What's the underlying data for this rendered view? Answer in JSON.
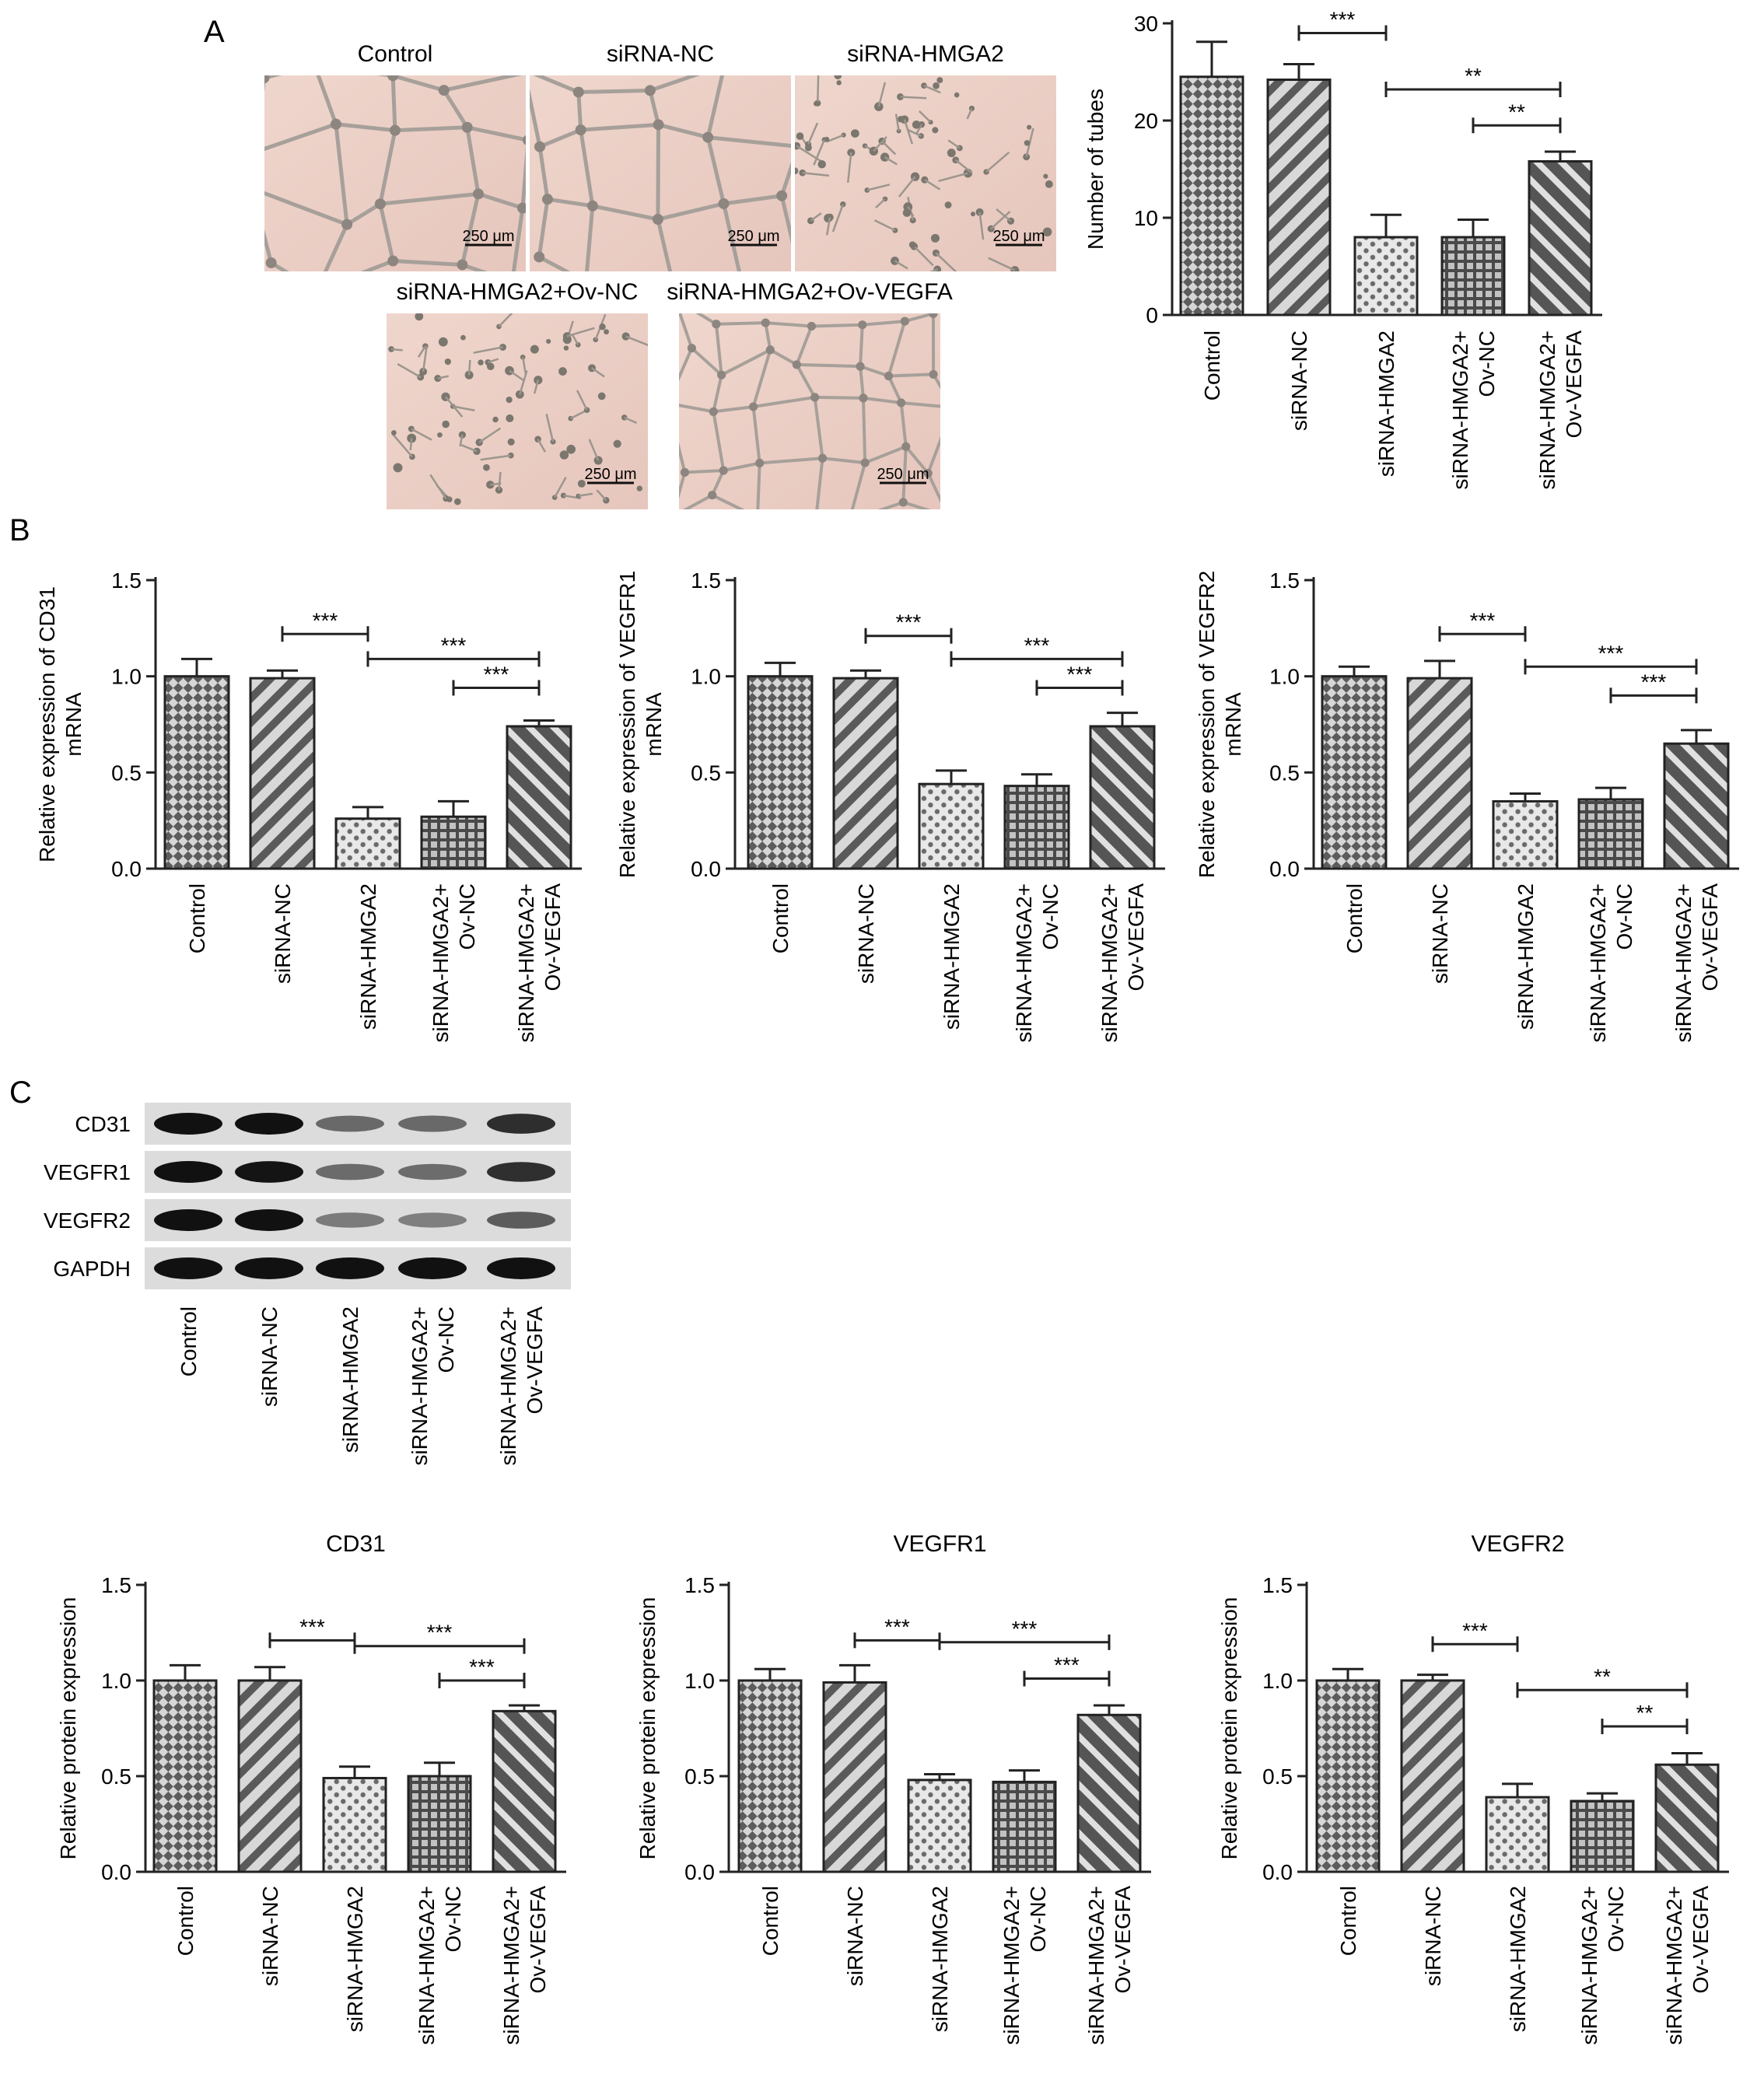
{
  "panels": {
    "a": {
      "letter": "A"
    },
    "b": {
      "letter": "B"
    },
    "c": {
      "letter": "C"
    }
  },
  "micrographs": {
    "scale_bar": "250 μm",
    "items": [
      {
        "id": "control",
        "label": "Control",
        "network": 1.0
      },
      {
        "id": "sinc",
        "label": "siRNA-NC",
        "network": 1.0
      },
      {
        "id": "sihmga2",
        "label": "siRNA-HMGA2",
        "network": 0.0
      },
      {
        "id": "ovnc",
        "label": "siRNA-HMGA2+Ov-NC",
        "network": 0.0
      },
      {
        "id": "ovvegfa",
        "label": "siRNA-HMGA2+Ov-VEGFA",
        "network": 0.6
      }
    ]
  },
  "western_blot": {
    "rows": [
      {
        "label": "CD31",
        "intensity": [
          1.0,
          1.0,
          0.49,
          0.5,
          0.84
        ]
      },
      {
        "label": "VEGFR1",
        "intensity": [
          1.0,
          0.99,
          0.48,
          0.47,
          0.82
        ]
      },
      {
        "label": "VEGFR2",
        "intensity": [
          1.0,
          1.0,
          0.39,
          0.37,
          0.56
        ]
      },
      {
        "label": "GAPDH",
        "intensity": [
          1.0,
          1.0,
          1.0,
          1.0,
          1.0
        ]
      }
    ],
    "lane_labels": [
      [
        "Control"
      ],
      [
        "siRNA-NC"
      ],
      [
        "siRNA-HMGA2"
      ],
      [
        "siRNA-HMGA2+",
        "Ov-NC"
      ],
      [
        "siRNA-HMGA2+",
        "Ov-VEGFA"
      ]
    ]
  },
  "chart_data": [
    {
      "id": "tubes",
      "panel": "A",
      "type": "bar",
      "title": "",
      "ylabel": [
        "Number of tubes"
      ],
      "ylim": [
        0,
        30
      ],
      "yticks": [
        "0",
        "10",
        "20",
        "30"
      ],
      "ytick_values": [
        0,
        10,
        20,
        30
      ],
      "categories": [
        [
          "Control"
        ],
        [
          "siRNA-NC"
        ],
        [
          "siRNA-HMGA2"
        ],
        [
          "siRNA-HMGA2+",
          "Ov-NC"
        ],
        [
          "siRNA-HMGA2+",
          "Ov-VEGFA"
        ]
      ],
      "values": [
        24.5,
        24.2,
        8.0,
        8.0,
        15.8
      ],
      "errors": [
        3.6,
        1.6,
        2.3,
        1.8,
        1.0
      ],
      "significance": [
        {
          "from": 1,
          "to": 2,
          "label": "***",
          "y": 29.0
        },
        {
          "from": 2,
          "to": 4,
          "label": "**",
          "y": 23.2
        },
        {
          "from": 3,
          "to": 4,
          "label": "**",
          "y": 19.5
        }
      ]
    },
    {
      "id": "cd31_mrna",
      "panel": "B",
      "type": "bar",
      "title": "",
      "ylabel": [
        "Relative expression of CD31",
        "mRNA"
      ],
      "ylim": [
        0,
        1.5
      ],
      "yticks": [
        "0.0",
        "0.5",
        "1.0",
        "1.5"
      ],
      "ytick_values": [
        0,
        0.5,
        1.0,
        1.5
      ],
      "categories": [
        [
          "Control"
        ],
        [
          "siRNA-NC"
        ],
        [
          "siRNA-HMGA2"
        ],
        [
          "siRNA-HMGA2+",
          "Ov-NC"
        ],
        [
          "siRNA-HMGA2+",
          "Ov-VEGFA"
        ]
      ],
      "values": [
        1.0,
        0.99,
        0.26,
        0.27,
        0.74
      ],
      "errors": [
        0.09,
        0.04,
        0.06,
        0.08,
        0.03
      ],
      "significance": [
        {
          "from": 1,
          "to": 2,
          "label": "***",
          "y": 1.22
        },
        {
          "from": 2,
          "to": 4,
          "label": "***",
          "y": 1.09
        },
        {
          "from": 3,
          "to": 4,
          "label": "***",
          "y": 0.94
        }
      ]
    },
    {
      "id": "vegfr1_mrna",
      "panel": "B",
      "type": "bar",
      "title": "",
      "ylabel": [
        "Relative expression of VEGFR1",
        "mRNA"
      ],
      "ylim": [
        0,
        1.5
      ],
      "yticks": [
        "0.0",
        "0.5",
        "1.0",
        "1.5"
      ],
      "ytick_values": [
        0,
        0.5,
        1.0,
        1.5
      ],
      "categories": [
        [
          "Control"
        ],
        [
          "siRNA-NC"
        ],
        [
          "siRNA-HMGA2"
        ],
        [
          "siRNA-HMGA2+",
          "Ov-NC"
        ],
        [
          "siRNA-HMGA2+",
          "Ov-VEGFA"
        ]
      ],
      "values": [
        1.0,
        0.99,
        0.44,
        0.43,
        0.74
      ],
      "errors": [
        0.07,
        0.04,
        0.07,
        0.06,
        0.07
      ],
      "significance": [
        {
          "from": 1,
          "to": 2,
          "label": "***",
          "y": 1.21
        },
        {
          "from": 2,
          "to": 4,
          "label": "***",
          "y": 1.09
        },
        {
          "from": 3,
          "to": 4,
          "label": "***",
          "y": 0.94
        }
      ]
    },
    {
      "id": "vegfr2_mrna",
      "panel": "B",
      "type": "bar",
      "title": "",
      "ylabel": [
        "Relative expression of VEGFR2",
        "mRNA"
      ],
      "ylim": [
        0,
        1.5
      ],
      "yticks": [
        "0.0",
        "0.5",
        "1.0",
        "1.5"
      ],
      "ytick_values": [
        0,
        0.5,
        1.0,
        1.5
      ],
      "categories": [
        [
          "Control"
        ],
        [
          "siRNA-NC"
        ],
        [
          "siRNA-HMGA2"
        ],
        [
          "siRNA-HMGA2+",
          "Ov-NC"
        ],
        [
          "siRNA-HMGA2+",
          "Ov-VEGFA"
        ]
      ],
      "values": [
        1.0,
        0.99,
        0.35,
        0.36,
        0.65
      ],
      "errors": [
        0.05,
        0.09,
        0.04,
        0.06,
        0.07
      ],
      "significance": [
        {
          "from": 1,
          "to": 2,
          "label": "***",
          "y": 1.22
        },
        {
          "from": 2,
          "to": 4,
          "label": "***",
          "y": 1.05
        },
        {
          "from": 3,
          "to": 4,
          "label": "***",
          "y": 0.9
        }
      ]
    },
    {
      "id": "cd31_protein",
      "panel": "C",
      "type": "bar",
      "title": "CD31",
      "ylabel": [
        "Relative protein expression"
      ],
      "ylim": [
        0,
        1.5
      ],
      "yticks": [
        "0.0",
        "0.5",
        "1.0",
        "1.5"
      ],
      "ytick_values": [
        0,
        0.5,
        1.0,
        1.5
      ],
      "categories": [
        [
          "Control"
        ],
        [
          "siRNA-NC"
        ],
        [
          "siRNA-HMGA2"
        ],
        [
          "siRNA-HMGA2+",
          "Ov-NC"
        ],
        [
          "siRNA-HMGA2+",
          "Ov-VEGFA"
        ]
      ],
      "values": [
        1.0,
        1.0,
        0.49,
        0.5,
        0.84
      ],
      "errors": [
        0.08,
        0.07,
        0.06,
        0.07,
        0.03
      ],
      "significance": [
        {
          "from": 1,
          "to": 2,
          "label": "***",
          "y": 1.21
        },
        {
          "from": 2,
          "to": 4,
          "label": "***",
          "y": 1.18
        },
        {
          "from": 3,
          "to": 4,
          "label": "***",
          "y": 1.0
        }
      ]
    },
    {
      "id": "vegfr1_protein",
      "panel": "C",
      "type": "bar",
      "title": "VEGFR1",
      "ylabel": [
        "Relative protein expression"
      ],
      "ylim": [
        0,
        1.5
      ],
      "yticks": [
        "0.0",
        "0.5",
        "1.0",
        "1.5"
      ],
      "ytick_values": [
        0,
        0.5,
        1.0,
        1.5
      ],
      "categories": [
        [
          "Control"
        ],
        [
          "siRNA-NC"
        ],
        [
          "siRNA-HMGA2"
        ],
        [
          "siRNA-HMGA2+",
          "Ov-NC"
        ],
        [
          "siRNA-HMGA2+",
          "Ov-VEGFA"
        ]
      ],
      "values": [
        1.0,
        0.99,
        0.48,
        0.47,
        0.82
      ],
      "errors": [
        0.06,
        0.09,
        0.03,
        0.06,
        0.05
      ],
      "significance": [
        {
          "from": 1,
          "to": 2,
          "label": "***",
          "y": 1.21
        },
        {
          "from": 2,
          "to": 4,
          "label": "***",
          "y": 1.2
        },
        {
          "from": 3,
          "to": 4,
          "label": "***",
          "y": 1.01
        }
      ]
    },
    {
      "id": "vegfr2_protein",
      "panel": "C",
      "type": "bar",
      "title": "VEGFR2",
      "ylabel": [
        "Relative protein expression"
      ],
      "ylim": [
        0,
        1.5
      ],
      "yticks": [
        "0.0",
        "0.5",
        "1.0",
        "1.5"
      ],
      "ytick_values": [
        0,
        0.5,
        1.0,
        1.5
      ],
      "categories": [
        [
          "Control"
        ],
        [
          "siRNA-NC"
        ],
        [
          "siRNA-HMGA2"
        ],
        [
          "siRNA-HMGA2+",
          "Ov-NC"
        ],
        [
          "siRNA-HMGA2+",
          "Ov-VEGFA"
        ]
      ],
      "values": [
        1.0,
        1.0,
        0.39,
        0.37,
        0.56
      ],
      "errors": [
        0.06,
        0.03,
        0.07,
        0.04,
        0.06
      ],
      "significance": [
        {
          "from": 1,
          "to": 2,
          "label": "***",
          "y": 1.19
        },
        {
          "from": 2,
          "to": 4,
          "label": "**",
          "y": 0.95
        },
        {
          "from": 3,
          "to": 4,
          "label": "**",
          "y": 0.76
        }
      ]
    }
  ]
}
